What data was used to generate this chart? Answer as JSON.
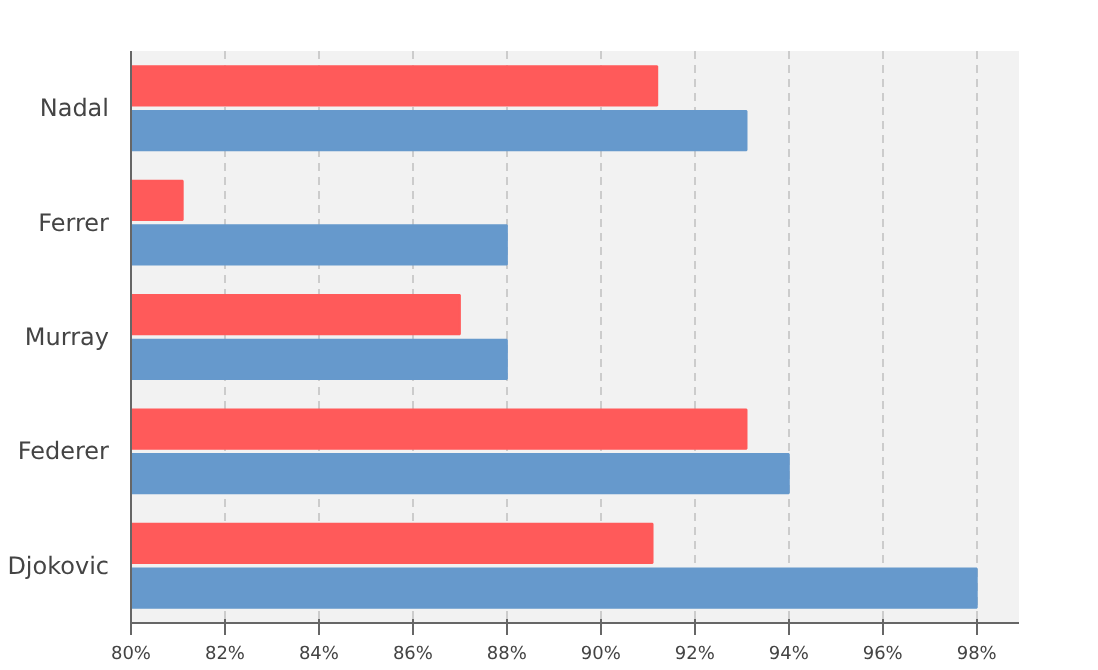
{
  "chart_data": {
    "type": "bar",
    "orientation": "horizontal",
    "categories": [
      "Nadal",
      "Ferrer",
      "Murray",
      "Federer",
      "Djokovic"
    ],
    "series": [
      {
        "color": "#ff5a5a",
        "values": [
          91.2,
          81.1,
          87.0,
          93.1,
          91.1
        ]
      },
      {
        "color": "#6699cc",
        "values": [
          93.1,
          88.0,
          88.0,
          94.0,
          98.0
        ]
      }
    ],
    "xlim": [
      80,
      98.9
    ],
    "xticks": [
      {
        "value": 80,
        "label": "80%"
      },
      {
        "value": 82,
        "label": "82%"
      },
      {
        "value": 84,
        "label": "84%"
      },
      {
        "value": 86,
        "label": "86%"
      },
      {
        "value": 88,
        "label": "88%"
      },
      {
        "value": 90,
        "label": "90%"
      },
      {
        "value": 92,
        "label": "92%"
      },
      {
        "value": 94,
        "label": "94%"
      },
      {
        "value": 96,
        "label": "96%"
      },
      {
        "value": 98,
        "label": "98%"
      }
    ],
    "grid": "x"
  }
}
